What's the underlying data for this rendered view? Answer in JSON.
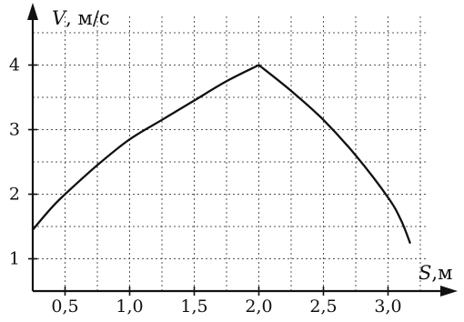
{
  "chart_data": {
    "type": "line",
    "xlabel": {
      "var": "S",
      "unit": ",м"
    },
    "ylabel": {
      "var": "V",
      "unit": ", м/с"
    },
    "x_ticks": [
      {
        "value": 0.5,
        "label": "0,5"
      },
      {
        "value": 1.0,
        "label": "1,0"
      },
      {
        "value": 1.5,
        "label": "1,5"
      },
      {
        "value": 2.0,
        "label": "2,0"
      },
      {
        "value": 2.5,
        "label": "2,5"
      },
      {
        "value": 3.0,
        "label": "3,0"
      }
    ],
    "y_ticks": [
      {
        "value": 1,
        "label": "1"
      },
      {
        "value": 2,
        "label": "2"
      },
      {
        "value": 3,
        "label": "3"
      },
      {
        "value": 4,
        "label": "4"
      }
    ],
    "xlim": [
      0.25,
      3.5
    ],
    "ylim": [
      0.6,
      5.0
    ],
    "grid": true,
    "series": [
      {
        "values": [
          [
            0.25,
            1.45
          ],
          [
            0.4,
            1.8
          ],
          [
            0.5,
            2.0
          ],
          [
            0.75,
            2.45
          ],
          [
            1.0,
            2.85
          ],
          [
            1.25,
            3.15
          ],
          [
            1.5,
            3.45
          ],
          [
            1.75,
            3.75
          ],
          [
            2.0,
            4.0
          ],
          [
            2.25,
            3.6
          ],
          [
            2.5,
            3.15
          ],
          [
            2.75,
            2.6
          ],
          [
            3.0,
            1.95
          ],
          [
            3.1,
            1.6
          ],
          [
            3.17,
            1.25
          ]
        ]
      }
    ]
  }
}
